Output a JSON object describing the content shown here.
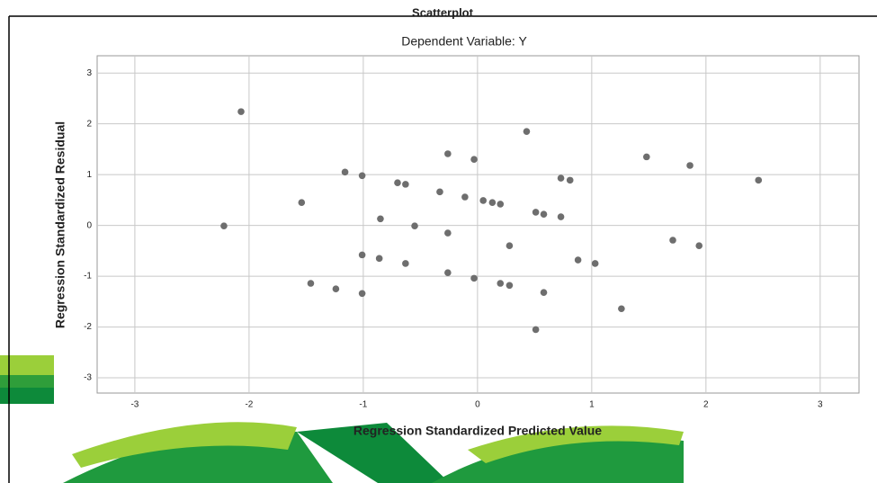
{
  "chart_data": {
    "type": "scatter",
    "title": "Scatterplot",
    "subtitle": "Dependent Variable: Y",
    "xlabel": "Regression Standardized Predicted Value",
    "ylabel": "Regression Standardized Residual",
    "x": [
      -2.07,
      -2.22,
      -1.54,
      -1.16,
      -1.01,
      -1.46,
      -1.24,
      -1.01,
      -1.01,
      -0.86,
      -0.85,
      -0.7,
      -0.63,
      -0.55,
      -0.63,
      -0.33,
      -0.26,
      -0.26,
      -0.26,
      -0.11,
      -0.03,
      -0.03,
      0.05,
      0.13,
      0.2,
      0.2,
      0.28,
      0.28,
      0.43,
      0.51,
      0.58,
      0.51,
      0.58,
      0.73,
      0.81,
      0.73,
      0.88,
      1.03,
      1.26,
      1.48,
      1.71,
      1.86,
      1.94,
      2.46
    ],
    "y": [
      2.24,
      -0.01,
      0.45,
      1.05,
      0.98,
      -1.14,
      -1.25,
      -1.34,
      -0.58,
      -0.65,
      0.13,
      0.84,
      0.81,
      -0.01,
      -0.75,
      0.66,
      1.41,
      -0.15,
      -0.93,
      0.56,
      1.3,
      -1.04,
      0.49,
      0.45,
      0.42,
      -1.14,
      -1.18,
      -0.4,
      1.85,
      0.26,
      0.22,
      -2.05,
      -1.32,
      0.93,
      0.89,
      0.17,
      -0.68,
      -0.75,
      -1.64,
      1.35,
      -0.29,
      1.18,
      -0.4,
      0.89
    ],
    "color": "#6e6e6e",
    "xlim": [
      -3.33,
      3.34
    ],
    "ylim": [
      -3.3,
      3.34
    ],
    "xticks": [
      -3,
      -2,
      -1,
      0,
      1,
      2,
      3
    ],
    "yticks": [
      -3,
      -2,
      -1,
      0,
      1,
      2,
      3
    ],
    "grid": true
  }
}
